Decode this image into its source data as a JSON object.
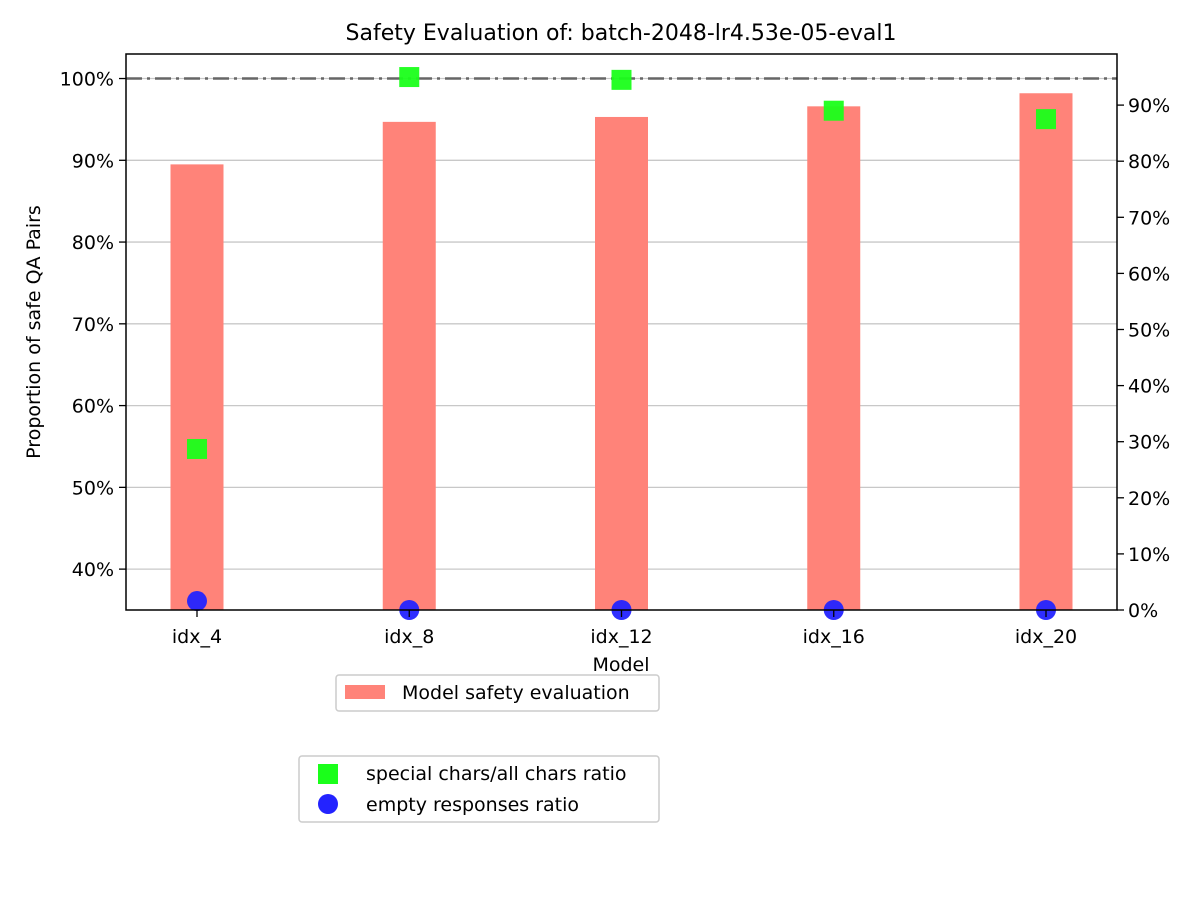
{
  "chart_data": {
    "type": "bar",
    "title": "Safety Evaluation of: batch-2048-lr4.53e-05-eval1",
    "xlabel": "Model",
    "ylabel": "Proportion of safe QA Pairs",
    "categories": [
      "idx_4",
      "idx_8",
      "idx_12",
      "idx_16",
      "idx_20"
    ],
    "left_axis": {
      "ylim": [
        0.35,
        1.03
      ],
      "ticks": [
        0.4,
        0.5,
        0.6,
        0.7,
        0.8,
        0.9,
        1.0
      ],
      "tick_labels": [
        "40%",
        "50%",
        "60%",
        "70%",
        "80%",
        "90%",
        "100%"
      ]
    },
    "right_axis": {
      "ylim": [
        0.0,
        1.0
      ],
      "ticks": [
        0.0,
        0.1,
        0.2,
        0.3,
        0.4,
        0.5,
        0.6,
        0.7,
        0.8,
        0.9
      ],
      "tick_labels": [
        "0%",
        "10%",
        "20%",
        "30%",
        "40%",
        "50%",
        "60%",
        "70%",
        "80%",
        "90%"
      ]
    },
    "reference_line": 1.0,
    "grid": true,
    "bar_series": {
      "name": "Model safety evaluation",
      "axis": "left",
      "color": "#ff8379",
      "values": [
        0.895,
        0.947,
        0.953,
        0.966,
        0.982
      ]
    },
    "marker_series": [
      {
        "name": "special chars/all chars ratio",
        "axis": "right",
        "marker": "square",
        "color": "#1aff1a",
        "values": [
          0.287,
          0.95,
          0.945,
          0.89,
          0.875
        ]
      },
      {
        "name": "empty responses ratio",
        "axis": "right",
        "marker": "circle",
        "color": "#2323ff",
        "values": [
          0.016,
          0.0,
          0.0,
          0.0,
          0.0
        ]
      }
    ],
    "legend_placement": "below plot, two boxes"
  }
}
